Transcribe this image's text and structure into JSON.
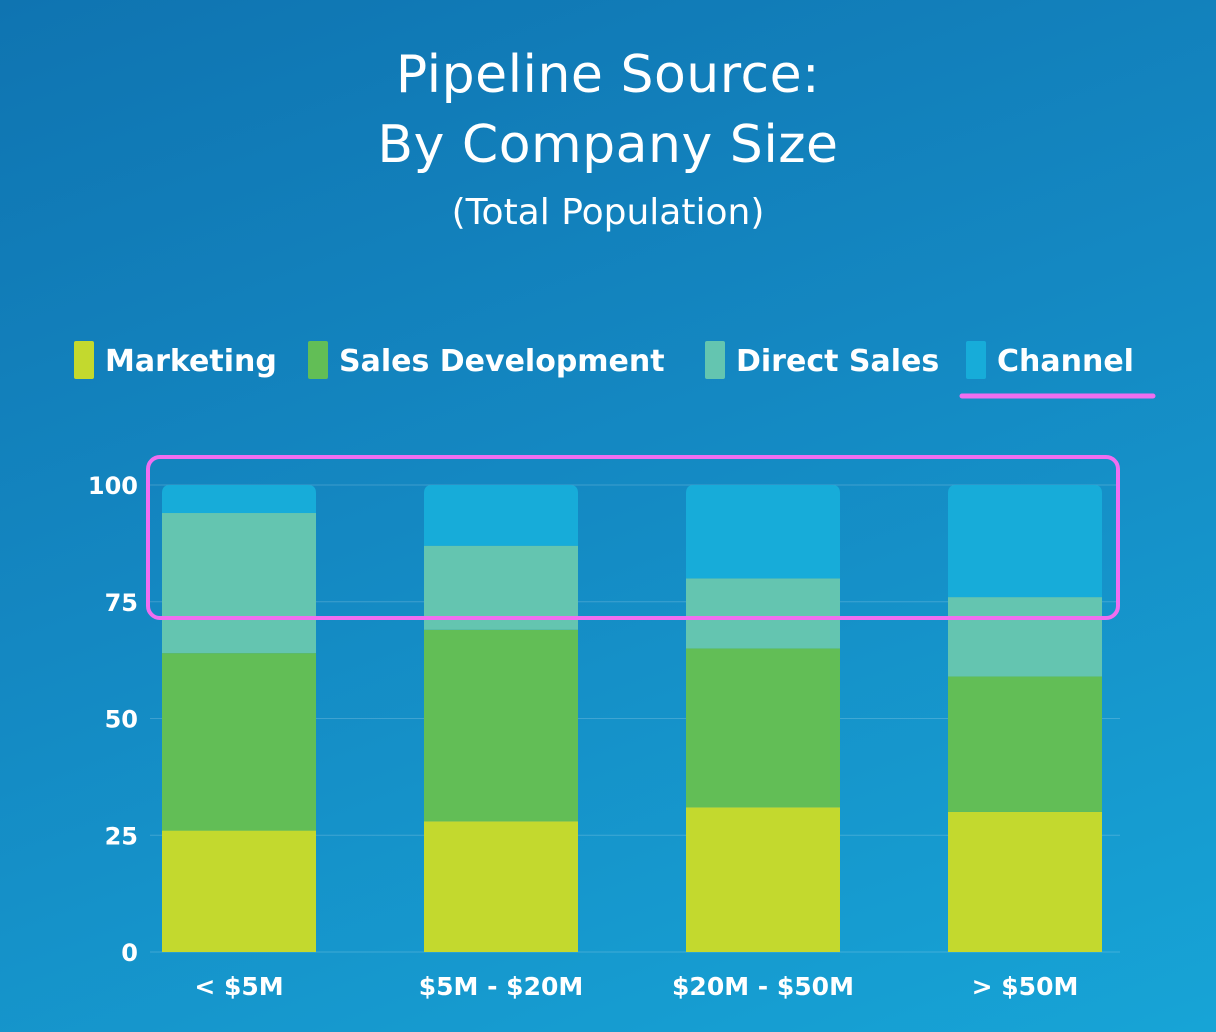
{
  "title": {
    "line1": "Pipeline Source:",
    "line2": "By Company Size",
    "subtitle": "(Total Population)"
  },
  "chart_data": {
    "type": "bar",
    "stacked": true,
    "categories": [
      "< $5M",
      "$5M - $20M",
      "$20M - $50M",
      "> $50M"
    ],
    "series": [
      {
        "name": "Marketing",
        "color": "#c3d92e",
        "values": [
          26,
          28,
          31,
          30
        ]
      },
      {
        "name": "Sales Development",
        "color": "#62be56",
        "values": [
          38,
          41,
          34,
          29
        ]
      },
      {
        "name": "Direct Sales",
        "color": "#64c5b0",
        "values": [
          30,
          18,
          15,
          17
        ]
      },
      {
        "name": "Channel",
        "color": "#17acd9",
        "values": [
          6,
          13,
          20,
          24
        ]
      }
    ],
    "yticks": [
      0,
      25,
      50,
      75,
      100
    ],
    "ylim": [
      0,
      100
    ],
    "grid": true,
    "legend": "top"
  },
  "annotations": {
    "highlight_color": "#f06ef0"
  }
}
